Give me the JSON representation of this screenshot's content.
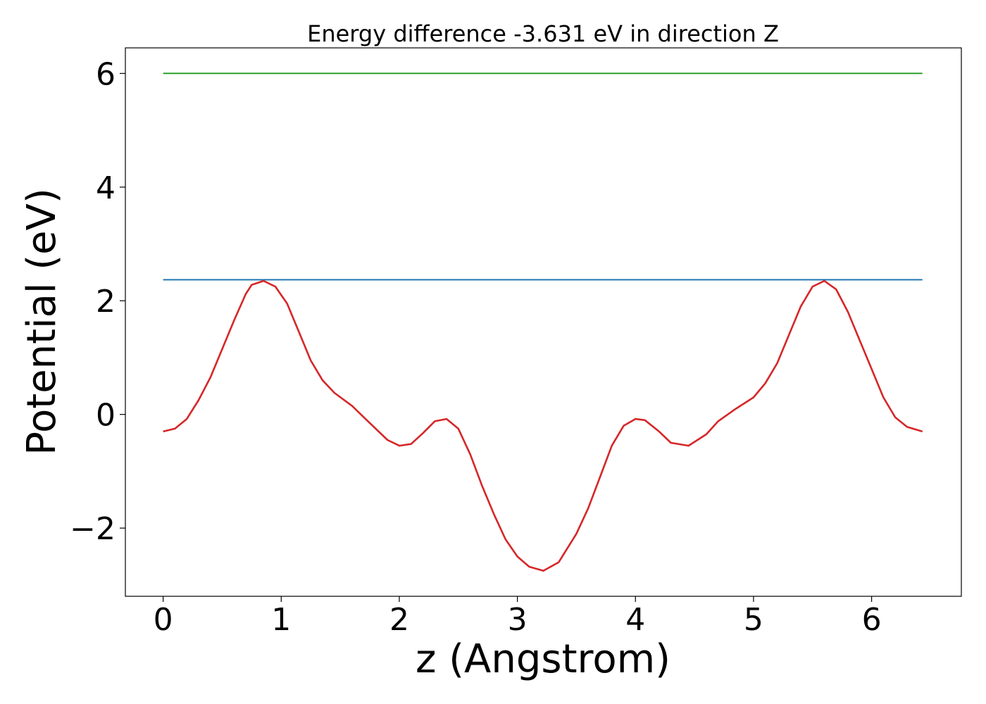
{
  "chart_data": {
    "type": "line",
    "title": "Energy difference -3.631 eV in direction Z",
    "xlabel": "z (Angstrom)",
    "ylabel": "Potential (eV)",
    "xlim": [
      -0.32,
      6.76
    ],
    "ylim": [
      -3.2,
      6.45
    ],
    "xticks": [
      0,
      1,
      2,
      3,
      4,
      5,
      6
    ],
    "xtick_labels": [
      "0",
      "1",
      "2",
      "3",
      "4",
      "5",
      "6"
    ],
    "yticks": [
      -2,
      0,
      2,
      4,
      6
    ],
    "ytick_labels": [
      "−2",
      "0",
      "2",
      "4",
      "6"
    ],
    "grid": false,
    "series": [
      {
        "color": "#2ca02c",
        "x": [
          0.0,
          6.43
        ],
        "y": [
          6.0,
          6.0
        ]
      },
      {
        "color": "#1f77b4",
        "x": [
          0.0,
          6.43
        ],
        "y": [
          2.37,
          2.37
        ]
      },
      {
        "color": "#d62728",
        "x": [
          0.0,
          0.1,
          0.2,
          0.3,
          0.4,
          0.5,
          0.6,
          0.7,
          0.75,
          0.85,
          0.95,
          1.05,
          1.15,
          1.25,
          1.35,
          1.45,
          1.6,
          1.75,
          1.9,
          2.0,
          2.1,
          2.2,
          2.3,
          2.4,
          2.5,
          2.6,
          2.7,
          2.8,
          2.9,
          3.0,
          3.1,
          3.22,
          3.35,
          3.5,
          3.6,
          3.7,
          3.8,
          3.9,
          4.0,
          4.08,
          4.2,
          4.3,
          4.45,
          4.6,
          4.7,
          4.85,
          5.0,
          5.1,
          5.2,
          5.3,
          5.4,
          5.5,
          5.6,
          5.7,
          5.8,
          5.9,
          6.0,
          6.1,
          6.2,
          6.3,
          6.43
        ],
        "y": [
          -0.3,
          -0.25,
          -0.08,
          0.25,
          0.65,
          1.15,
          1.65,
          2.12,
          2.28,
          2.35,
          2.25,
          1.95,
          1.45,
          0.95,
          0.6,
          0.38,
          0.15,
          -0.15,
          -0.45,
          -0.55,
          -0.52,
          -0.33,
          -0.12,
          -0.08,
          -0.25,
          -0.7,
          -1.25,
          -1.75,
          -2.2,
          -2.5,
          -2.68,
          -2.75,
          -2.6,
          -2.1,
          -1.65,
          -1.1,
          -0.55,
          -0.2,
          -0.08,
          -0.1,
          -0.3,
          -0.5,
          -0.55,
          -0.35,
          -0.12,
          0.1,
          0.3,
          0.55,
          0.9,
          1.4,
          1.9,
          2.25,
          2.35,
          2.2,
          1.8,
          1.3,
          0.8,
          0.3,
          -0.05,
          -0.22,
          -0.3
        ]
      }
    ]
  }
}
